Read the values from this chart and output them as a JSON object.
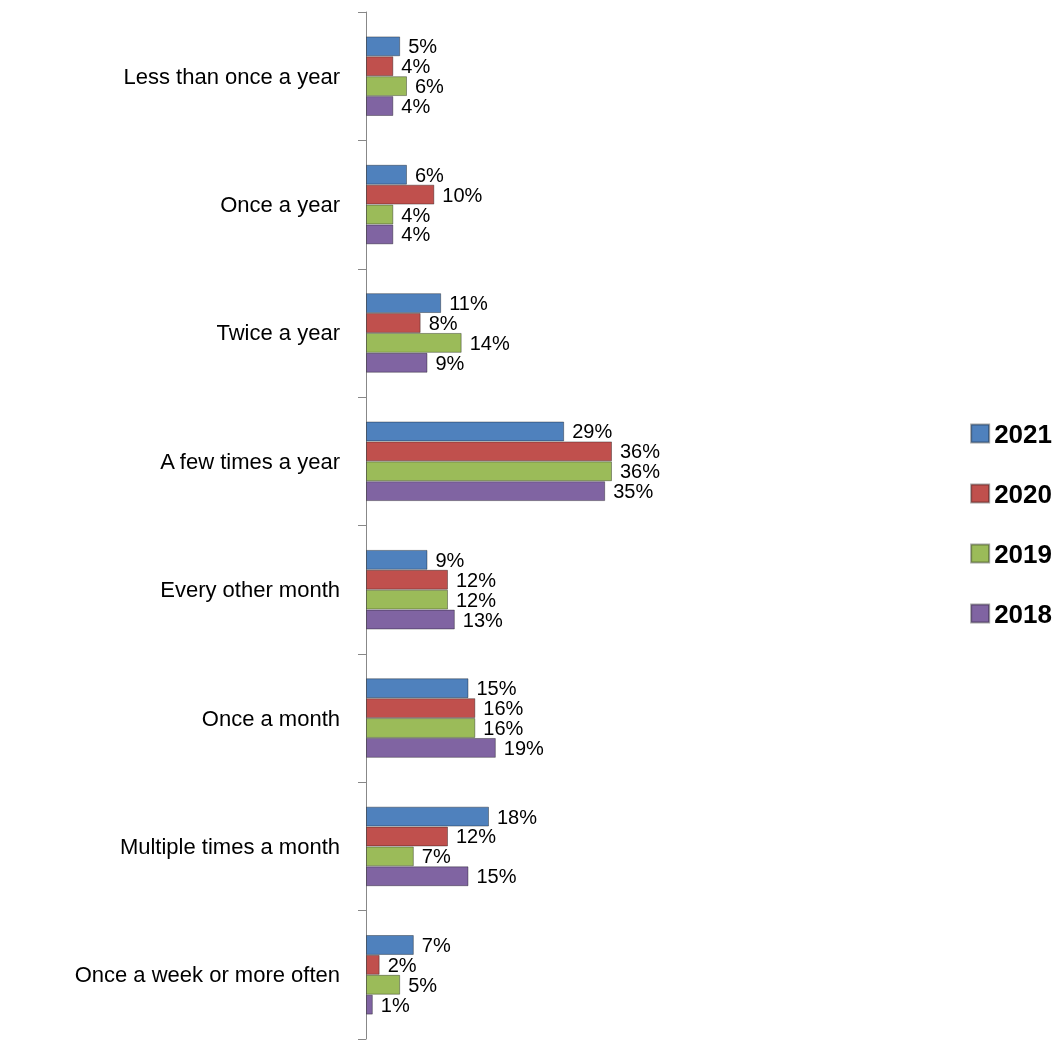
{
  "chart_data": {
    "type": "bar",
    "orientation": "horizontal",
    "legend": "right",
    "tick_labels": "y",
    "categories": [
      "Less than once a year",
      "Once a year",
      "Twice a year",
      "A few times a year",
      "Every other month",
      "Once a month",
      "Multiple times a month",
      "Once a week or more often"
    ],
    "series": [
      {
        "name": "2021",
        "color": "#4f81bd",
        "values": [
          5,
          6,
          11,
          29,
          9,
          15,
          18,
          7
        ],
        "value_labels": [
          "5%",
          "6%",
          "11%",
          "29%",
          "9%",
          "15%",
          "18%",
          "7%"
        ]
      },
      {
        "name": "2020",
        "color": "#c0504d",
        "values": [
          4,
          10,
          8,
          36,
          12,
          16,
          12,
          2
        ],
        "value_labels": [
          "4%",
          "10%",
          "8%",
          "36%",
          "12%",
          "16%",
          "12%",
          "2%"
        ]
      },
      {
        "name": "2019",
        "color": "#9bbb59",
        "values": [
          6,
          4,
          14,
          36,
          12,
          16,
          7,
          5
        ],
        "value_labels": [
          "6%",
          "4%",
          "14%",
          "36%",
          "12%",
          "16%",
          "7%",
          "5%"
        ]
      },
      {
        "name": "2018",
        "color": "#8064a2",
        "values": [
          4,
          4,
          9,
          35,
          13,
          19,
          15,
          1
        ],
        "value_labels": [
          "4%",
          "4%",
          "9%",
          "35%",
          "13%",
          "19%",
          "15%",
          "1%"
        ]
      }
    ]
  }
}
